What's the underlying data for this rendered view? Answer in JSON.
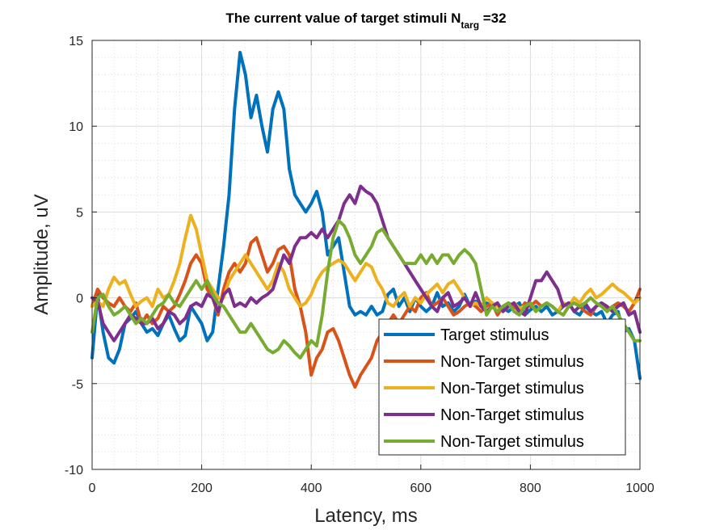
{
  "chart_data": {
    "type": "line",
    "title": {
      "main": "The current value of target stimuli N",
      "subscript": "targ",
      "suffix": " =32"
    },
    "xlabel": "Latency, ms",
    "ylabel": "Amplitude, uV",
    "xlim": [
      0,
      1000
    ],
    "ylim": [
      -10,
      15
    ],
    "xticks": [
      0,
      200,
      400,
      600,
      800,
      1000
    ],
    "yticks": [
      -10,
      -5,
      0,
      5,
      10,
      15
    ],
    "grid": true,
    "minor_grid": true,
    "legend_position": "bottom-right",
    "series": [
      {
        "name": "Target stimulus",
        "color": "#0072BD",
        "x": [
          0,
          10,
          20,
          30,
          40,
          50,
          60,
          70,
          80,
          90,
          100,
          110,
          120,
          130,
          140,
          150,
          160,
          170,
          180,
          190,
          200,
          210,
          220,
          230,
          240,
          250,
          260,
          270,
          280,
          290,
          300,
          310,
          320,
          330,
          340,
          350,
          360,
          370,
          380,
          390,
          400,
          410,
          420,
          430,
          440,
          450,
          460,
          470,
          480,
          490,
          500,
          510,
          520,
          530,
          540,
          550,
          560,
          570,
          580,
          590,
          600,
          610,
          620,
          630,
          640,
          650,
          660,
          670,
          680,
          690,
          700,
          710,
          720,
          730,
          740,
          750,
          760,
          770,
          780,
          790,
          800,
          810,
          820,
          830,
          840,
          850,
          860,
          870,
          880,
          890,
          900,
          910,
          920,
          930,
          940,
          950,
          960,
          970,
          980,
          990,
          1000
        ],
        "y": [
          -3.5,
          0.2,
          -2.0,
          -3.5,
          -3.8,
          -3.0,
          -1.5,
          -1.2,
          -0.8,
          -1.5,
          -2.0,
          -1.8,
          -2.2,
          -1.5,
          -1.0,
          -1.8,
          -2.5,
          -2.2,
          -0.5,
          -1.0,
          -1.5,
          -2.5,
          -2.0,
          0.5,
          3.0,
          6.0,
          11.0,
          14.3,
          13.0,
          10.5,
          11.8,
          10.0,
          8.5,
          11.0,
          12.0,
          11.0,
          7.5,
          6.0,
          5.5,
          5.0,
          5.5,
          6.2,
          5.0,
          2.5,
          3.0,
          3.5,
          1.5,
          -0.5,
          -1.0,
          -0.8,
          -1.0,
          -0.5,
          -1.0,
          -0.8,
          0.2,
          0.5,
          -0.5,
          0.0,
          -0.8,
          0.0,
          -0.5,
          -0.8,
          -0.5,
          0.3,
          -0.5,
          -0.3,
          -0.8,
          -0.5,
          0.2,
          -0.5,
          -0.2,
          -0.5,
          -0.3,
          -0.5,
          -0.8,
          -0.6,
          -0.8,
          -0.5,
          -0.3,
          -1.0,
          -0.7,
          -0.5,
          -0.8,
          -0.5,
          -1.0,
          -0.8,
          -0.5,
          -0.3,
          -0.8,
          -1.0,
          -0.5,
          -0.8,
          -1.0,
          -0.8,
          -1.5,
          -1.0,
          -0.8,
          -2.0,
          -1.8,
          -2.5,
          -4.7
        ]
      },
      {
        "name": "Non-Target stimulus",
        "color": "#D95319",
        "x": [
          0,
          10,
          20,
          30,
          40,
          50,
          60,
          70,
          80,
          90,
          100,
          110,
          120,
          130,
          140,
          150,
          160,
          170,
          180,
          190,
          200,
          210,
          220,
          230,
          240,
          250,
          260,
          270,
          280,
          290,
          300,
          310,
          320,
          330,
          340,
          350,
          360,
          370,
          380,
          390,
          400,
          410,
          420,
          430,
          440,
          450,
          460,
          470,
          480,
          490,
          500,
          510,
          520,
          530,
          540,
          550,
          560,
          570,
          580,
          590,
          600,
          610,
          620,
          630,
          640,
          650,
          660,
          670,
          680,
          690,
          700,
          710,
          720,
          730,
          740,
          750,
          760,
          770,
          780,
          790,
          800,
          810,
          820,
          830,
          840,
          850,
          860,
          870,
          880,
          890,
          900,
          910,
          920,
          930,
          940,
          950,
          960,
          970,
          980,
          990,
          1000
        ],
        "y": [
          -0.5,
          0.5,
          0.0,
          -0.3,
          -0.5,
          0.0,
          -0.5,
          -0.8,
          -0.3,
          -1.5,
          -1.0,
          -1.5,
          -1.2,
          -0.5,
          -0.8,
          -0.5,
          0.2,
          1.0,
          2.0,
          2.5,
          2.0,
          0.5,
          0.0,
          -1.0,
          0.5,
          1.5,
          2.0,
          1.5,
          2.0,
          3.2,
          3.5,
          2.5,
          1.5,
          2.0,
          2.8,
          3.0,
          2.5,
          0.5,
          -0.5,
          -2.0,
          -4.5,
          -3.5,
          -3.0,
          -2.0,
          -1.8,
          -2.5,
          -3.5,
          -4.5,
          -5.2,
          -4.5,
          -4.0,
          -3.5,
          -2.5,
          -2.0,
          -1.5,
          -1.0,
          -1.5,
          -1.0,
          -0.5,
          -0.8,
          0.0,
          0.3,
          -0.5,
          -0.3,
          0.0,
          -0.5,
          -1.0,
          -0.8,
          -0.5,
          -0.3,
          -0.5,
          -0.8,
          -0.5,
          -0.3,
          -1.0,
          -0.5,
          -0.3,
          -0.5,
          -0.8,
          -0.3,
          -0.5,
          -0.2,
          -0.5,
          -0.3,
          -0.5,
          -0.8,
          -1.0,
          -0.5,
          -0.3,
          -0.5,
          -0.8,
          -1.0,
          -0.5,
          -0.3,
          -0.8,
          -0.5,
          -0.3,
          -0.5,
          -0.8,
          -0.3,
          0.5
        ]
      },
      {
        "name": "Non-Target stimulus",
        "color": "#EDB120",
        "x": [
          0,
          10,
          20,
          30,
          40,
          50,
          60,
          70,
          80,
          90,
          100,
          110,
          120,
          130,
          140,
          150,
          160,
          170,
          180,
          190,
          200,
          210,
          220,
          230,
          240,
          250,
          260,
          270,
          280,
          290,
          300,
          310,
          320,
          330,
          340,
          350,
          360,
          370,
          380,
          390,
          400,
          410,
          420,
          430,
          440,
          450,
          460,
          470,
          480,
          490,
          500,
          510,
          520,
          530,
          540,
          550,
          560,
          570,
          580,
          590,
          600,
          610,
          620,
          630,
          640,
          650,
          660,
          670,
          680,
          690,
          700,
          710,
          720,
          730,
          740,
          750,
          760,
          770,
          780,
          790,
          800,
          810,
          820,
          830,
          840,
          850,
          860,
          870,
          880,
          890,
          900,
          910,
          920,
          930,
          940,
          950,
          960,
          970,
          980,
          990,
          1000
        ],
        "y": [
          -0.5,
          -0.2,
          -0.5,
          0.5,
          1.2,
          0.8,
          1.0,
          0.2,
          -0.5,
          -0.2,
          0.0,
          -0.5,
          0.5,
          0.0,
          0.2,
          1.0,
          2.0,
          3.5,
          4.8,
          4.0,
          2.5,
          1.0,
          0.5,
          0.0,
          0.0,
          1.0,
          1.5,
          2.0,
          2.5,
          2.0,
          1.5,
          1.0,
          0.5,
          1.0,
          2.0,
          1.5,
          0.5,
          0.0,
          -0.5,
          -0.3,
          0.2,
          1.0,
          1.5,
          1.8,
          2.0,
          2.2,
          2.0,
          1.5,
          1.0,
          1.5,
          2.0,
          1.8,
          1.0,
          0.5,
          -0.3,
          -0.5,
          0.0,
          0.3,
          -0.5,
          0.0,
          -0.3,
          0.2,
          0.5,
          0.8,
          0.3,
          0.8,
          1.0,
          0.5,
          0.0,
          -0.5,
          -0.3,
          -0.5,
          0.0,
          -0.3,
          -0.5,
          -0.8,
          -0.5,
          -0.3,
          -0.6,
          -0.5,
          -0.3,
          -0.8,
          -0.5,
          -0.3,
          -0.5,
          -0.8,
          -0.3,
          -0.5,
          0.0,
          -0.3,
          0.2,
          0.5,
          0.0,
          0.2,
          0.5,
          0.8,
          0.5,
          0.3,
          0.0,
          -0.3,
          0.0
        ]
      },
      {
        "name": "Non-Target stimulus",
        "color": "#7E2F8E",
        "x": [
          0,
          10,
          20,
          30,
          40,
          50,
          60,
          70,
          80,
          90,
          100,
          110,
          120,
          130,
          140,
          150,
          160,
          170,
          180,
          190,
          200,
          210,
          220,
          230,
          240,
          250,
          260,
          270,
          280,
          290,
          300,
          310,
          320,
          330,
          340,
          350,
          360,
          370,
          380,
          390,
          400,
          410,
          420,
          430,
          440,
          450,
          460,
          470,
          480,
          490,
          500,
          510,
          520,
          530,
          540,
          550,
          560,
          570,
          580,
          590,
          600,
          610,
          620,
          630,
          640,
          650,
          660,
          670,
          680,
          690,
          700,
          710,
          720,
          730,
          740,
          750,
          760,
          770,
          780,
          790,
          800,
          810,
          820,
          830,
          840,
          850,
          860,
          870,
          880,
          890,
          900,
          910,
          920,
          930,
          940,
          950,
          960,
          970,
          980,
          990,
          1000
        ],
        "y": [
          0.0,
          -0.2,
          -1.5,
          -2.0,
          -2.5,
          -2.0,
          -1.5,
          -1.0,
          -1.2,
          -1.5,
          -1.5,
          -1.2,
          -1.8,
          -1.5,
          -0.8,
          -1.0,
          -1.5,
          -1.2,
          -0.5,
          -0.3,
          -0.5,
          0.2,
          0.0,
          -0.8,
          0.2,
          0.5,
          -0.5,
          -0.3,
          -0.5,
          0.0,
          -0.3,
          0.0,
          0.2,
          0.5,
          1.5,
          2.5,
          2.0,
          3.0,
          3.5,
          3.5,
          3.8,
          3.5,
          4.0,
          3.5,
          4.0,
          4.5,
          5.5,
          6.0,
          5.5,
          6.5,
          6.2,
          6.0,
          5.5,
          4.5,
          3.5,
          3.0,
          2.5,
          2.0,
          1.5,
          1.0,
          0.5,
          0.0,
          -0.5,
          -0.8,
          0.0,
          0.3,
          -0.5,
          -0.3,
          0.0,
          -0.5,
          0.3,
          -0.5,
          -0.8,
          -0.5,
          -0.3,
          -0.8,
          -0.5,
          -0.3,
          -0.8,
          -1.0,
          0.0,
          1.0,
          1.0,
          1.5,
          1.0,
          0.5,
          -0.5,
          -0.3,
          -0.8,
          -0.5,
          -0.3,
          -0.8,
          -0.5,
          -0.3,
          -0.5,
          -0.8,
          -0.5,
          -0.3,
          -1.0,
          -0.8,
          -2.0
        ]
      },
      {
        "name": "Non-Target stimulus",
        "color": "#77AC30",
        "x": [
          0,
          10,
          20,
          30,
          40,
          50,
          60,
          70,
          80,
          90,
          100,
          110,
          120,
          130,
          140,
          150,
          160,
          170,
          180,
          190,
          200,
          210,
          220,
          230,
          240,
          250,
          260,
          270,
          280,
          290,
          300,
          310,
          320,
          330,
          340,
          350,
          360,
          370,
          380,
          390,
          400,
          410,
          420,
          430,
          440,
          450,
          460,
          470,
          480,
          490,
          500,
          510,
          520,
          530,
          540,
          550,
          560,
          570,
          580,
          590,
          600,
          610,
          620,
          630,
          640,
          650,
          660,
          670,
          680,
          690,
          700,
          710,
          720,
          730,
          740,
          750,
          760,
          770,
          780,
          790,
          800,
          810,
          820,
          830,
          840,
          850,
          860,
          870,
          880,
          890,
          900,
          910,
          920,
          930,
          940,
          950,
          960,
          970,
          980,
          990,
          1000
        ],
        "y": [
          -2.0,
          0.0,
          0.2,
          -0.5,
          -1.0,
          -0.8,
          -0.5,
          -1.0,
          -1.5,
          -1.2,
          -1.5,
          -1.0,
          -0.5,
          -0.3,
          0.2,
          -0.3,
          -0.5,
          0.0,
          0.5,
          1.0,
          0.5,
          1.0,
          0.2,
          -0.3,
          -0.5,
          -1.0,
          -1.5,
          -2.0,
          -2.0,
          -1.5,
          -2.0,
          -2.5,
          -3.0,
          -3.2,
          -3.0,
          -2.5,
          -2.8,
          -3.2,
          -3.5,
          -3.0,
          -2.5,
          -2.8,
          -1.0,
          1.5,
          3.5,
          4.5,
          4.2,
          3.5,
          2.5,
          2.0,
          2.5,
          3.0,
          3.8,
          4.0,
          3.5,
          3.0,
          2.5,
          2.0,
          2.0,
          2.0,
          2.5,
          2.0,
          2.5,
          2.0,
          2.5,
          2.5,
          2.0,
          2.5,
          2.8,
          2.5,
          2.0,
          0.5,
          -1.0,
          -0.5,
          -0.8,
          -0.5,
          -0.3,
          -0.8,
          -1.0,
          -0.5,
          -0.3,
          -0.8,
          -0.5,
          -0.3,
          -0.5,
          -0.8,
          -1.0,
          -0.5,
          -0.3,
          -0.5,
          -0.3,
          0.0,
          -0.3,
          -0.5,
          -0.8,
          -0.5,
          -1.0,
          -1.5,
          -2.0,
          -2.5,
          -2.5
        ]
      }
    ]
  }
}
